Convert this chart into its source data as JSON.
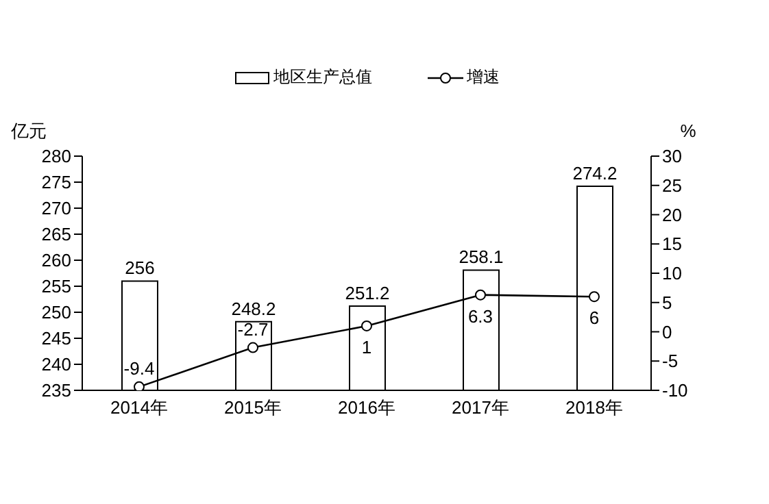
{
  "chart_data": {
    "type": "bar",
    "categories": [
      "2014年",
      "2015年",
      "2016年",
      "2017年",
      "2018年"
    ],
    "series": [
      {
        "name": "地区生产总值",
        "color": "#ffffff",
        "values": [
          256,
          248.2,
          251.2,
          258.1,
          274.2
        ]
      },
      {
        "name": "增速",
        "type": "line",
        "axis": "y2",
        "color": "#000000",
        "values": [
          -9.4,
          -2.7,
          1,
          6.3,
          6
        ]
      }
    ],
    "ylabel": "亿元",
    "y2label": "%",
    "ylim": [
      235,
      280
    ],
    "yticks": [
      235,
      240,
      245,
      250,
      255,
      260,
      265,
      270,
      275,
      280
    ],
    "y2lim": [
      -10,
      30
    ],
    "y2ticks": [
      -10,
      -5,
      0,
      5,
      10,
      15,
      20,
      25,
      30
    ],
    "data_labels": true,
    "legend": "top",
    "grid": false,
    "marker": "circle",
    "line_style": "solid"
  }
}
